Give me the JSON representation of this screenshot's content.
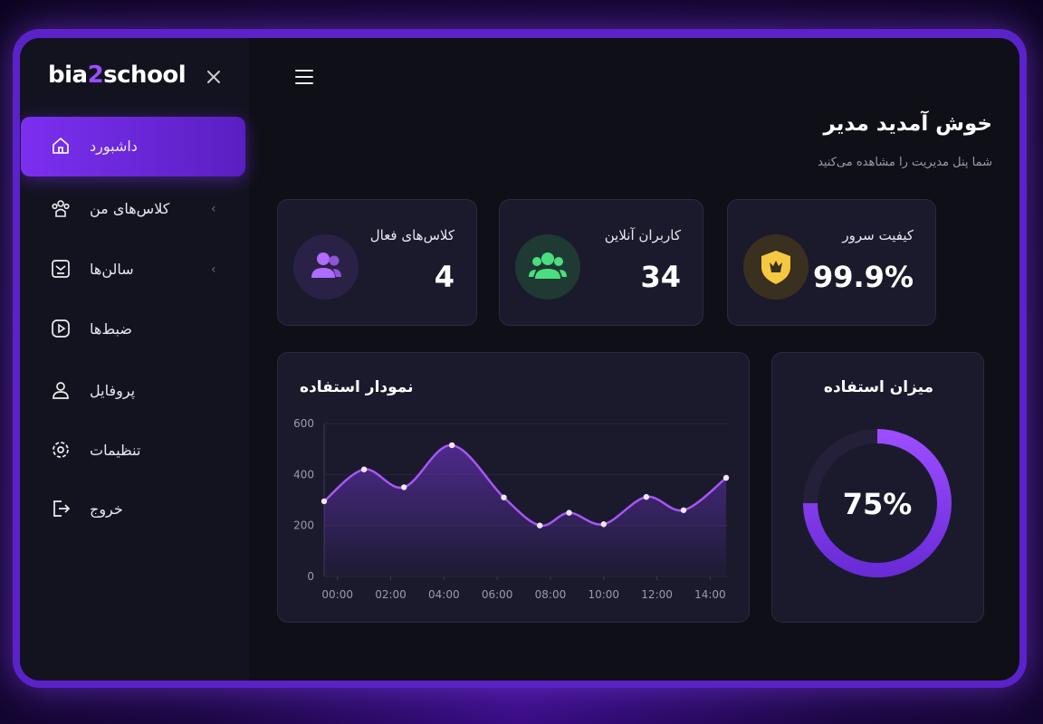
{
  "sidebar": {
    "logo": [
      "bia",
      "2",
      "school"
    ],
    "menu": [
      "داشبورد",
      "کلاس‌های من",
      "سالن‌ها",
      "ضبط‌ها",
      "پروفایل",
      "تنظیمات",
      "خروج"
    ]
  },
  "header": {
    "title": "خوش آمدید مدیر",
    "subtitle": "شما پنل مدیریت را مشاهده می‌کنید"
  },
  "stats": [
    {
      "label": "کلاس‌های فعال",
      "value": "4"
    },
    {
      "label": "کاربران آنلاین",
      "value": "34"
    },
    {
      "label": "کیفیت سرور",
      "value": "99.9%"
    }
  ],
  "chart_data": [
    {
      "type": "line",
      "title": "نمودار استفاده",
      "x": [
        -0.5,
        1,
        2.5,
        4.3,
        6.25,
        7.6,
        8.7,
        10,
        11.6,
        13,
        14.6
      ],
      "values": [
        295,
        420,
        350,
        515,
        310,
        200,
        250,
        205,
        312,
        260,
        387
      ],
      "color": "#a855f7",
      "xlim": [
        -0.5,
        14.7
      ],
      "xticks": [
        {
          "value": 0,
          "label": "00:00"
        },
        {
          "value": 2,
          "label": "02:00"
        },
        {
          "value": 4,
          "label": "04:00"
        },
        {
          "value": 6,
          "label": "06:00"
        },
        {
          "value": 8,
          "label": "08:00"
        },
        {
          "value": 10,
          "label": "10:00"
        },
        {
          "value": 12,
          "label": "12:00"
        },
        {
          "value": 14,
          "label": "14:00"
        }
      ],
      "ylim": [
        0,
        600
      ],
      "yticks": [
        0,
        200,
        400,
        600
      ],
      "grid": true
    },
    {
      "type": "donut",
      "title": "میزان استفاده",
      "values": [
        75
      ],
      "value_labels": [
        "75%"
      ],
      "color": "#9b4dff"
    }
  ]
}
